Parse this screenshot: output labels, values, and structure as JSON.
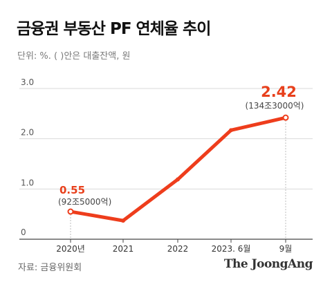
{
  "chart_data": {
    "type": "line",
    "title": "금융권 부동산 PF 연체율 추이",
    "subtitle": "단위: %. ( )안은 대출잔액, 원",
    "categories": [
      "2020년",
      "2021",
      "2022",
      "2023. 6월",
      "9월"
    ],
    "values": [
      0.55,
      0.37,
      1.19,
      2.17,
      2.42
    ],
    "y_ticks": [
      "0",
      "1.0",
      "2.0",
      "3.0"
    ],
    "ylim": [
      0,
      3.0
    ],
    "grid": true,
    "annotations": [
      {
        "index": 0,
        "value_label": "0.55",
        "balance_label": "(92조5000억)"
      },
      {
        "index": 4,
        "value_label": "2.42",
        "balance_label": "(134조3000억)"
      }
    ],
    "line_color": "#ee3d1c",
    "label_color": "#e8401c"
  },
  "footer": {
    "source": "자료: 금융위원회",
    "brand": "The JoongAng"
  }
}
